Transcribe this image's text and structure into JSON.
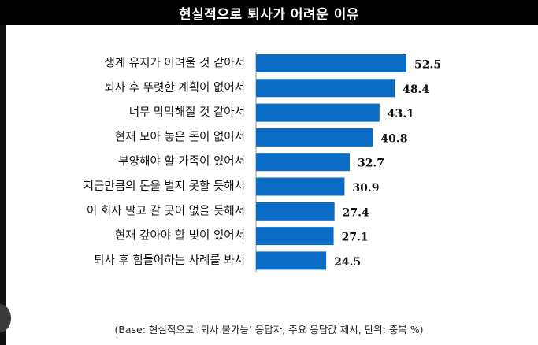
{
  "chart_data": {
    "type": "bar",
    "orientation": "horizontal",
    "title": "현실적으로 퇴사가 어려운 이유",
    "categories": [
      "생계 유지가 어려울 것 같아서",
      "퇴사 후 뚜렷한 계획이 없어서",
      "너무 막막해질 것 같아서",
      "현재 모아 놓은 돈이 없어서",
      "부양해야 할 가족이 있어서",
      "지금만큼의 돈을 벌지 못할 듯해서",
      "이 회사 말고 갈 곳이 없을 듯해서",
      "현재 갚아야 할 빚이 있어서",
      "퇴사 후 힘들어하는 사례를 봐서"
    ],
    "values": [
      52.5,
      48.4,
      43.1,
      40.8,
      32.7,
      30.9,
      27.4,
      27.1,
      24.5
    ],
    "value_labels": [
      "52.5",
      "48.4",
      "43.1",
      "40.8",
      "32.7",
      "30.9",
      "27.4",
      "27.1",
      "24.5"
    ],
    "xlim": [
      0,
      52.5
    ],
    "grid": false,
    "bar_color": "#0a6cc4",
    "footnote": "(Base: 현실적으로 ‘퇴사 불가능’ 응답자, 주요 응답값 제시, 단위; 중복 %)"
  }
}
